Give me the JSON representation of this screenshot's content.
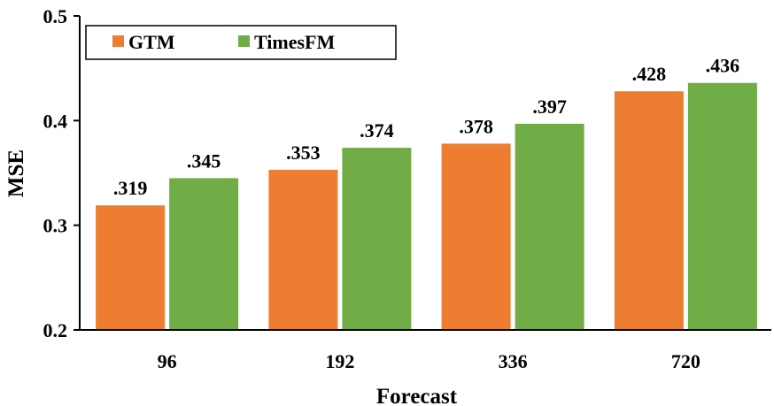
{
  "chart_data": {
    "type": "bar",
    "title": "",
    "xlabel": "Forecast",
    "ylabel": "MSE",
    "categories": [
      "96",
      "192",
      "336",
      "720"
    ],
    "series": [
      {
        "name": "GTM",
        "values": [
          0.319,
          0.353,
          0.378,
          0.428
        ],
        "labels": [
          ".319",
          ".353",
          ".378",
          ".428"
        ],
        "color": "#ED7D31"
      },
      {
        "name": "TimesFM",
        "values": [
          0.345,
          0.374,
          0.397,
          0.436
        ],
        "labels": [
          ".345",
          ".374",
          ".397",
          ".436"
        ],
        "color": "#70AD47"
      }
    ],
    "ylim": [
      0.2,
      0.5
    ],
    "yticks": [
      0.2,
      0.3,
      0.4,
      0.5
    ],
    "ytick_labels": [
      "0.2",
      "0.3",
      "0.4",
      "0.5"
    ],
    "grid": false,
    "legend_position": "top-left"
  }
}
